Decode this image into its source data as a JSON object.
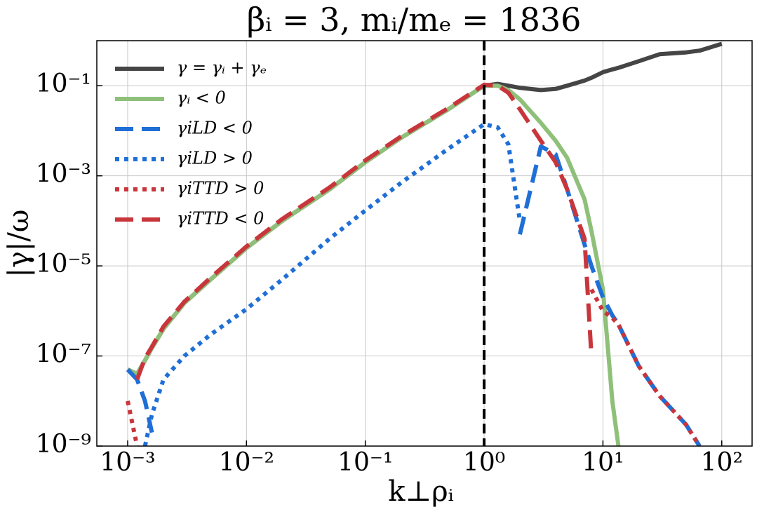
{
  "chart_data": {
    "type": "line",
    "title": "βᵢ = 3, mᵢ/mₑ = 1836",
    "xlabel": "k⊥ρᵢ",
    "ylabel": "|γ|/ω",
    "xscale": "log",
    "yscale": "log",
    "xlim": [
      0.00055,
      180
    ],
    "ylim": [
      1e-09,
      1
    ],
    "xticks": [
      {
        "value": 0.001,
        "label": "10⁻³"
      },
      {
        "value": 0.01,
        "label": "10⁻²"
      },
      {
        "value": 0.1,
        "label": "10⁻¹"
      },
      {
        "value": 1,
        "label": "10⁰"
      },
      {
        "value": 10,
        "label": "10¹"
      },
      {
        "value": 100,
        "label": "10²"
      }
    ],
    "yticks": [
      {
        "value": 1e-09,
        "label": "10⁻⁹"
      },
      {
        "value": 1e-07,
        "label": "10⁻⁷"
      },
      {
        "value": 1e-05,
        "label": "10⁻⁵"
      },
      {
        "value": 0.001,
        "label": "10⁻³"
      },
      {
        "value": 0.1,
        "label": "10⁻¹"
      }
    ],
    "grid": true,
    "legend": "upper left",
    "vline": 1,
    "x": [
      0.001,
      0.0012,
      0.0014,
      0.0016,
      0.002,
      0.003,
      0.005,
      0.01,
      0.02,
      0.05,
      0.1,
      0.2,
      0.5,
      1,
      1.3,
      1.6,
      2,
      3,
      4,
      5,
      7,
      8,
      10,
      12,
      13.5,
      20,
      30,
      50,
      65,
      100
    ],
    "series": [
      {
        "name": "γ = γᵢ + γₑ",
        "color": "#454545",
        "linestyle": "solid",
        "values": [
          5e-08,
          4e-08,
          8e-08,
          1.5e-07,
          4e-07,
          1.5e-06,
          5e-06,
          2.5e-05,
          0.0001,
          0.0005,
          0.002,
          0.007,
          0.03,
          0.1,
          0.11,
          0.1,
          0.09,
          0.08,
          0.085,
          0.1,
          0.13,
          0.15,
          0.2,
          0.23,
          0.25,
          0.35,
          0.5,
          0.55,
          0.6,
          0.85
        ]
      },
      {
        "name": "γᵢ < 0",
        "color": "#8fc07a",
        "linestyle": "solid",
        "values": [
          5e-08,
          4e-08,
          8e-08,
          1.5e-07,
          4e-07,
          1.5e-06,
          5e-06,
          2.5e-05,
          0.0001,
          0.0005,
          0.002,
          0.007,
          0.03,
          0.1,
          0.1,
          0.08,
          0.05,
          0.015,
          0.006,
          0.0025,
          0.0003,
          6e-05,
          3e-06,
          1e-08,
          1e-09,
          null,
          null,
          null,
          null,
          null
        ]
      },
      {
        "name": "γiLD < 0",
        "color": "#1f6fd6",
        "linestyle": "dashed",
        "values": [
          5e-08,
          3e-08,
          1e-08,
          2e-09,
          null,
          null,
          null,
          null,
          null,
          null,
          null,
          null,
          null,
          null,
          null,
          null,
          5e-05,
          0.0045,
          0.003,
          0.0005,
          3e-05,
          1e-05,
          2e-06,
          8e-07,
          5e-07,
          6e-08,
          1.3e-08,
          3e-09,
          1e-09,
          null
        ]
      },
      {
        "name": "γiLD > 0",
        "color": "#1f6fd6",
        "linestyle": "dotted",
        "values": [
          null,
          null,
          1e-09,
          5e-09,
          3e-08,
          1e-07,
          3e-07,
          1.1e-06,
          5e-06,
          4e-05,
          0.00017,
          0.0007,
          0.004,
          0.014,
          0.012,
          0.005,
          0.0001,
          null,
          null,
          null,
          null,
          null,
          null,
          null,
          null,
          null,
          null,
          null,
          null,
          null
        ]
      },
      {
        "name": "γiTTD > 0",
        "color": "#c8363c",
        "linestyle": "dotted",
        "values": [
          1e-08,
          1e-09,
          null,
          null,
          null,
          null,
          null,
          null,
          null,
          null,
          null,
          null,
          null,
          null,
          null,
          null,
          null,
          null,
          null,
          null,
          null,
          3e-06,
          1e-06,
          7e-07,
          5e-07,
          6e-08,
          1.3e-08,
          3e-09,
          1e-09,
          null
        ]
      },
      {
        "name": "γiTTD < 0",
        "color": "#c8363c",
        "linestyle": "dashed",
        "values": [
          null,
          3e-08,
          9e-08,
          1.6e-07,
          4.5e-07,
          1.6e-06,
          5.5e-06,
          2.7e-05,
          0.00011,
          0.00055,
          0.0022,
          0.0075,
          0.032,
          0.105,
          0.1,
          0.07,
          0.03,
          0.006,
          0.002,
          0.0005,
          4e-05,
          1e-07,
          null,
          null,
          null,
          null,
          null,
          null,
          null,
          null
        ]
      }
    ]
  }
}
